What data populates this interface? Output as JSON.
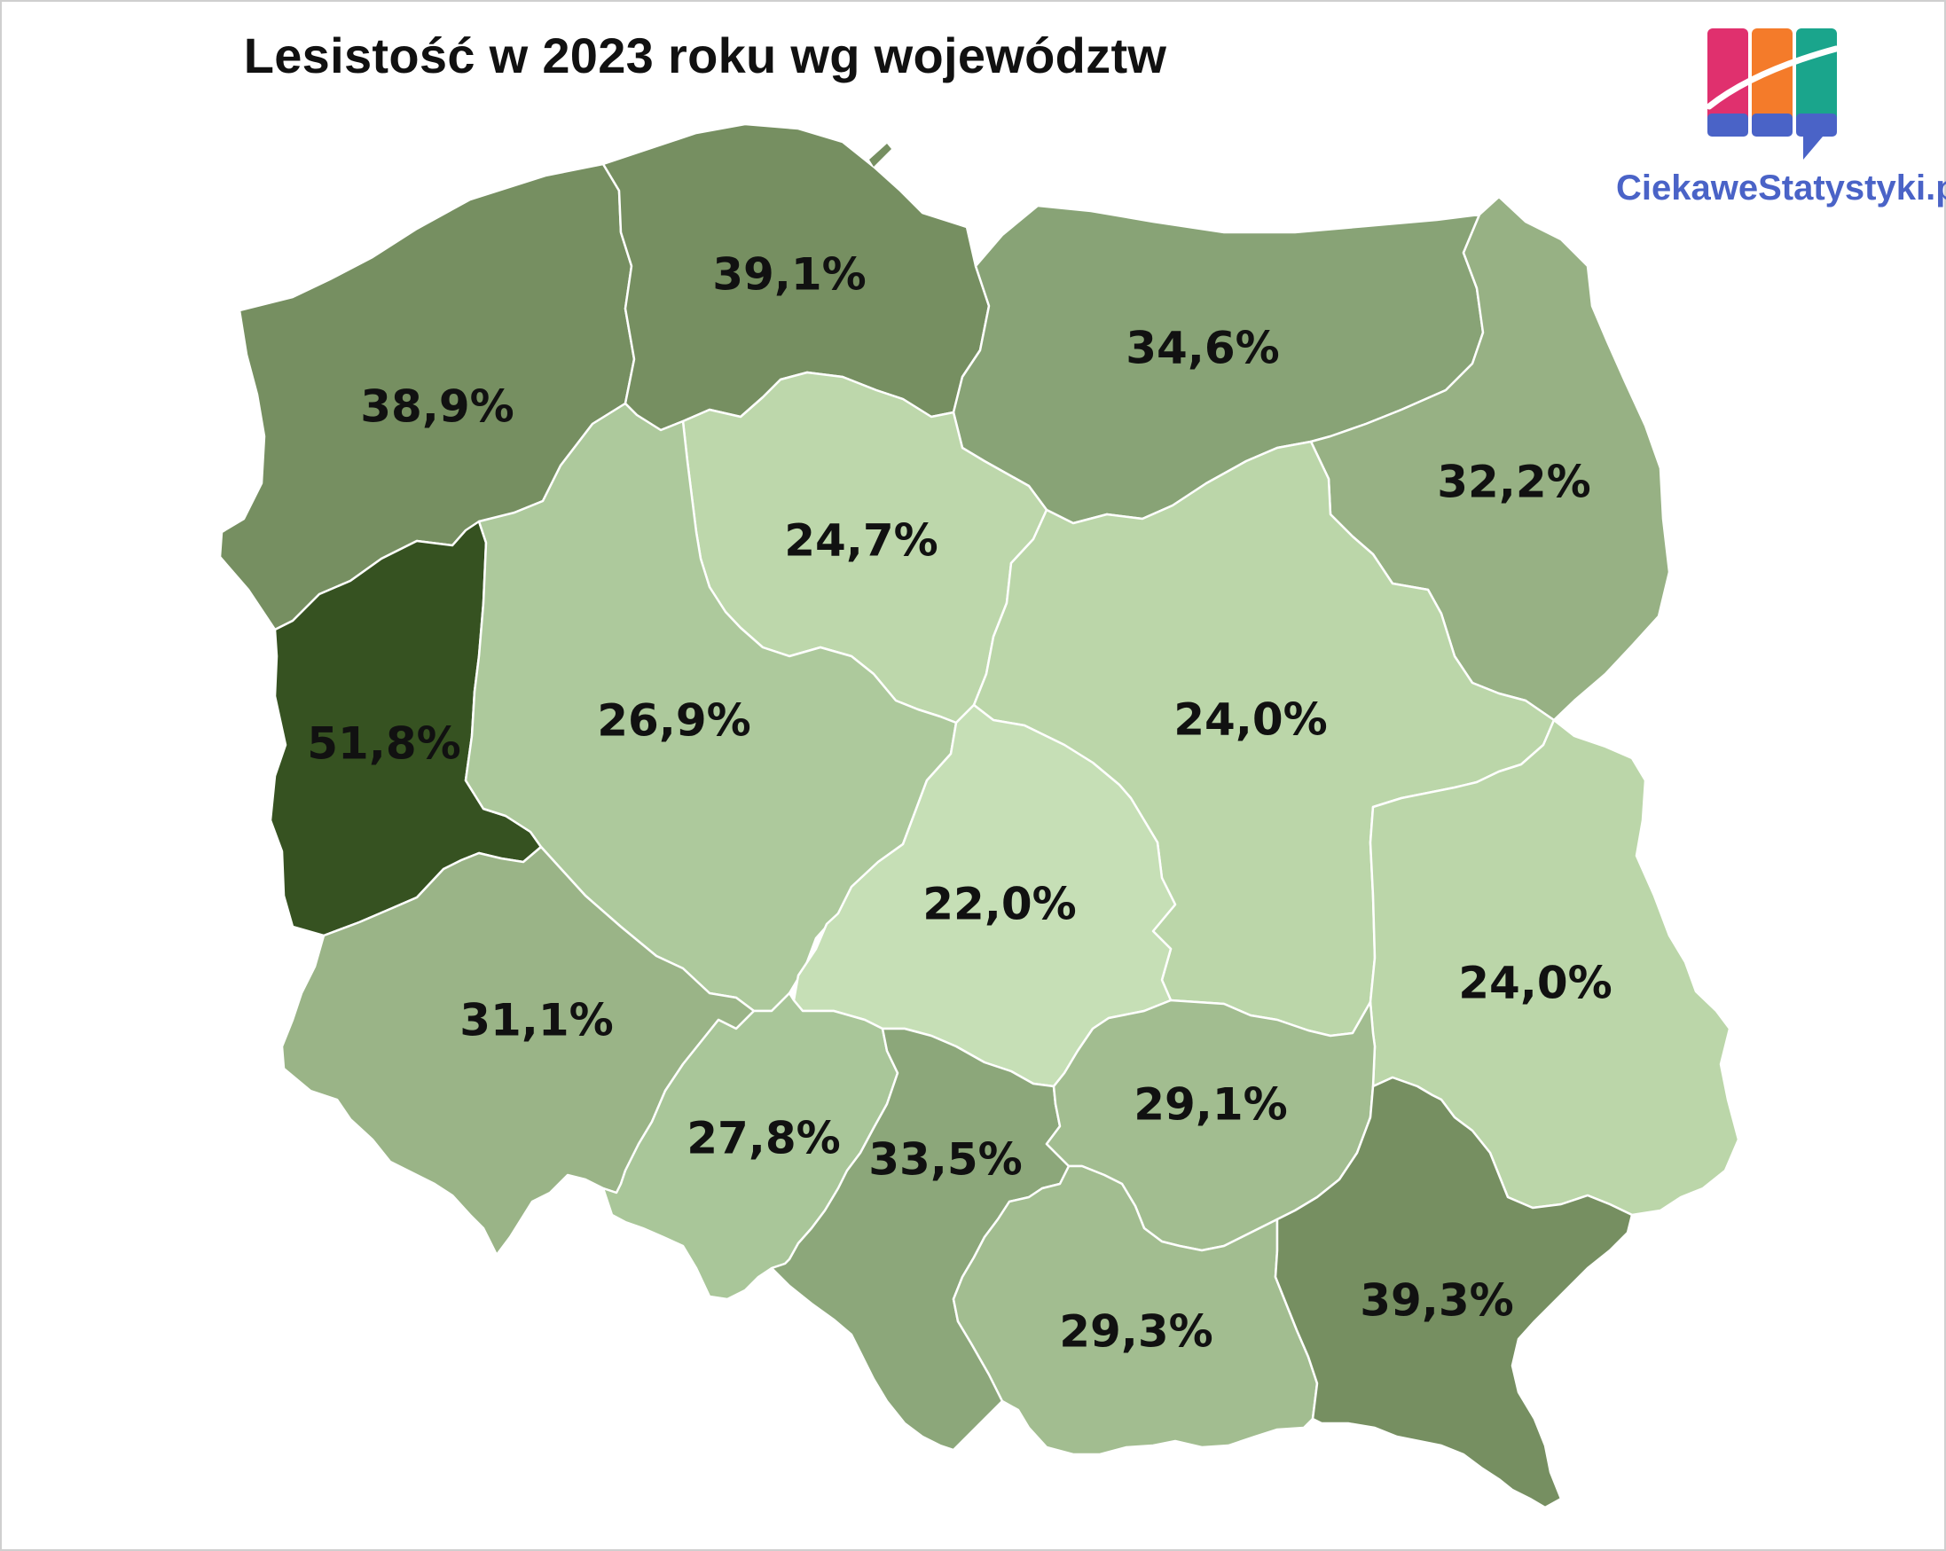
{
  "title": "Lesistość w 2023 roku wg województw",
  "logo": {
    "text": "CiekaweStatystyki.pl",
    "icon": "bar-chart-logo-icon"
  },
  "colors": {
    "background": "#ffffff",
    "region_border": "#ffffff",
    "logo_text": "#4a63c7"
  },
  "regions": [
    {
      "id": "zachodniopomorskie",
      "value": "38,9%",
      "fill": "#768f61"
    },
    {
      "id": "pomorskie",
      "value": "39,1%",
      "fill": "#768f61"
    },
    {
      "id": "warminsko-mazurskie",
      "value": "34,6%",
      "fill": "#88a376"
    },
    {
      "id": "podlaskie",
      "value": "32,2%",
      "fill": "#97b184"
    },
    {
      "id": "kujawsko-pomorskie",
      "value": "24,7%",
      "fill": "#bdd7ab"
    },
    {
      "id": "lubuskie",
      "value": "51,8%",
      "fill": "#365221"
    },
    {
      "id": "wielkopolskie",
      "value": "26,9%",
      "fill": "#adc99c"
    },
    {
      "id": "mazowieckie",
      "value": "24,0%",
      "fill": "#bbd6a9"
    },
    {
      "id": "lodzkie",
      "value": "22,0%",
      "fill": "#c6dfb6"
    },
    {
      "id": "lubelskie",
      "value": "24,0%",
      "fill": "#bbd6a9"
    },
    {
      "id": "dolnoslaskie",
      "value": "31,1%",
      "fill": "#9ab487"
    },
    {
      "id": "opolskie",
      "value": "27,8%",
      "fill": "#a9c699"
    },
    {
      "id": "slaskie",
      "value": "33,5%",
      "fill": "#8ca77a"
    },
    {
      "id": "swietokrzyskie",
      "value": "29,1%",
      "fill": "#a2bd90"
    },
    {
      "id": "malopolskie",
      "value": "29,3%",
      "fill": "#a2bd90"
    },
    {
      "id": "podkarpackie",
      "value": "39,3%",
      "fill": "#768f61"
    }
  ]
}
